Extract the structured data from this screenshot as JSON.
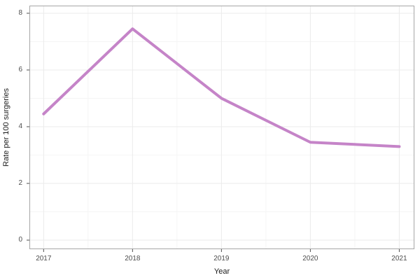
{
  "chart_data": {
    "type": "line",
    "xlabel": "Year",
    "ylabel": "Rate per 100 surgeries",
    "x": [
      2017,
      2018,
      2019,
      2020,
      2021
    ],
    "values": [
      4.45,
      7.45,
      5.0,
      3.45,
      3.3
    ],
    "x_ticks": [
      2017,
      2018,
      2019,
      2020,
      2021
    ],
    "x_minor_ticks": [
      2017.5,
      2018.5,
      2019.5,
      2020.5
    ],
    "y_ticks": [
      0,
      2,
      4,
      6,
      8
    ],
    "y_minor_ticks": [
      1,
      3,
      5,
      7
    ],
    "xlim": [
      2016.84,
      2021.17
    ],
    "ylim": [
      -0.32,
      8.27
    ],
    "grid": true,
    "legend": "none",
    "line_color": "#C584C8",
    "line_width": 4,
    "colors": {
      "background": "#FFFFFF",
      "panel_background": "#FFFFFF",
      "grid_major": "#EBEBEB",
      "grid_minor": "#F5F5F5",
      "panel_border": "#A6A6A6",
      "tick_mark": "#4D4D4D",
      "tick_label": "#4D4D4D",
      "axis_title": "#1A1A1A"
    }
  }
}
